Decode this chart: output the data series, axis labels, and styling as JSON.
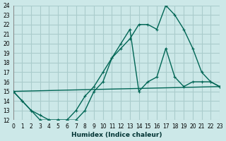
{
  "xlabel": "Humidex (Indice chaleur)",
  "bg_color": "#cce8e8",
  "grid_color": "#aacccc",
  "line_color": "#006655",
  "line1_x": [
    0,
    1,
    2,
    3,
    4,
    5,
    6,
    7,
    8,
    9,
    10,
    11,
    12,
    13,
    14,
    15,
    16,
    17,
    18,
    19,
    20,
    21,
    22,
    23
  ],
  "line1_y": [
    15,
    14,
    13,
    12,
    12,
    12,
    12,
    12,
    13,
    15,
    16,
    18.5,
    20,
    21.5,
    15,
    16,
    16.5,
    19.5,
    16.5,
    15.5,
    16,
    16,
    16,
    15.5
  ],
  "line2_x": [
    0,
    1,
    2,
    3,
    4,
    5,
    6,
    7,
    8,
    9,
    10,
    11,
    12,
    13,
    14,
    15,
    16,
    17,
    18,
    19,
    20,
    21,
    22,
    23
  ],
  "line2_y": [
    15,
    14,
    13,
    12.5,
    12,
    12,
    12,
    13,
    14.5,
    15.5,
    17,
    18.5,
    19.5,
    20.5,
    22,
    22,
    21.5,
    24,
    23,
    21.5,
    19.5,
    17,
    16,
    15.5
  ],
  "line3_x": [
    0,
    23
  ],
  "line3_y": [
    15,
    15.5
  ],
  "ylim": [
    12,
    24
  ],
  "xlim": [
    0,
    23
  ],
  "yticks": [
    12,
    13,
    14,
    15,
    16,
    17,
    18,
    19,
    20,
    21,
    22,
    23,
    24
  ],
  "xticks": [
    0,
    1,
    2,
    3,
    4,
    5,
    6,
    7,
    8,
    9,
    10,
    11,
    12,
    13,
    14,
    15,
    16,
    17,
    18,
    19,
    20,
    21,
    22,
    23
  ]
}
